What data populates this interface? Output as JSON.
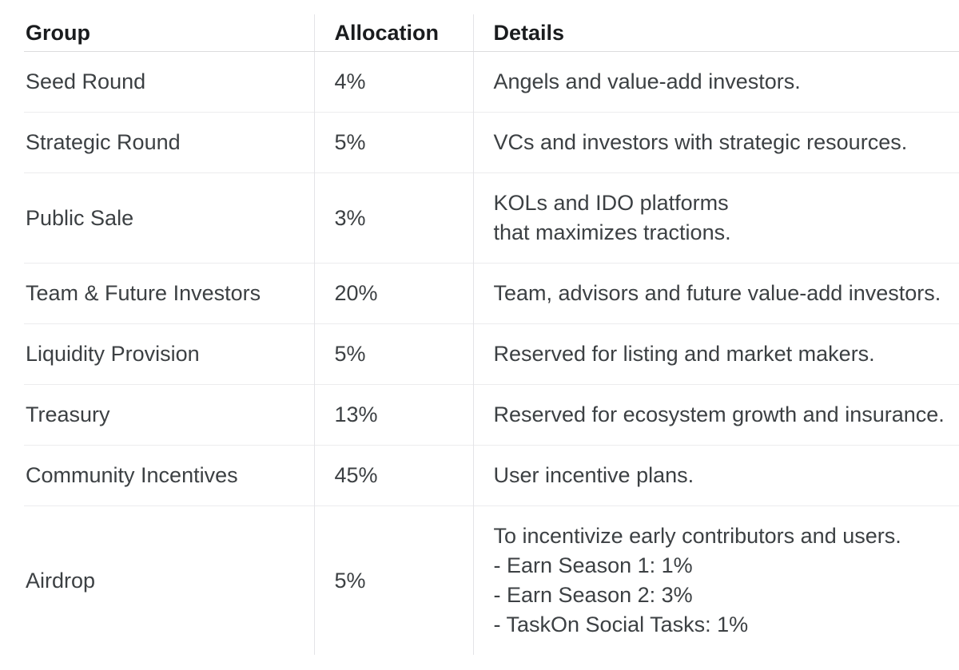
{
  "table": {
    "columns": [
      {
        "label": "Group"
      },
      {
        "label": "Allocation"
      },
      {
        "label": "Details"
      }
    ],
    "rows": [
      {
        "group": "Seed Round",
        "allocation": "4%",
        "details": [
          "Angels and value-add investors."
        ]
      },
      {
        "group": "Strategic Round",
        "allocation": "5%",
        "details": [
          "VCs and investors with strategic resources."
        ]
      },
      {
        "group": "Public Sale",
        "allocation": "3%",
        "details": [
          "KOLs and IDO platforms",
          "that maximizes tractions."
        ]
      },
      {
        "group": "Team & Future Investors",
        "allocation": "20%",
        "details": [
          "Team, advisors and future value-add investors."
        ]
      },
      {
        "group": "Liquidity Provision",
        "allocation": "5%",
        "details": [
          "Reserved for listing and market makers."
        ]
      },
      {
        "group": "Treasury",
        "allocation": "13%",
        "details": [
          "Reserved for ecosystem growth and insurance."
        ]
      },
      {
        "group": "Community Incentives",
        "allocation": "45%",
        "details": [
          "User incentive plans."
        ]
      },
      {
        "group": "Airdrop",
        "allocation": "5%",
        "details": [
          "To incentivize early contributors and users.",
          "- Earn Season 1: 1%",
          "- Earn Season 2: 3%",
          "- TaskOn Social Tasks: 1%"
        ]
      }
    ]
  },
  "colors": {
    "background": "#ffffff",
    "header_text": "#1a1c1e",
    "body_text": "#3c4043",
    "header_border": "#dcdcde",
    "row_border": "#ececee",
    "column_divider": "#e4e4e7"
  }
}
